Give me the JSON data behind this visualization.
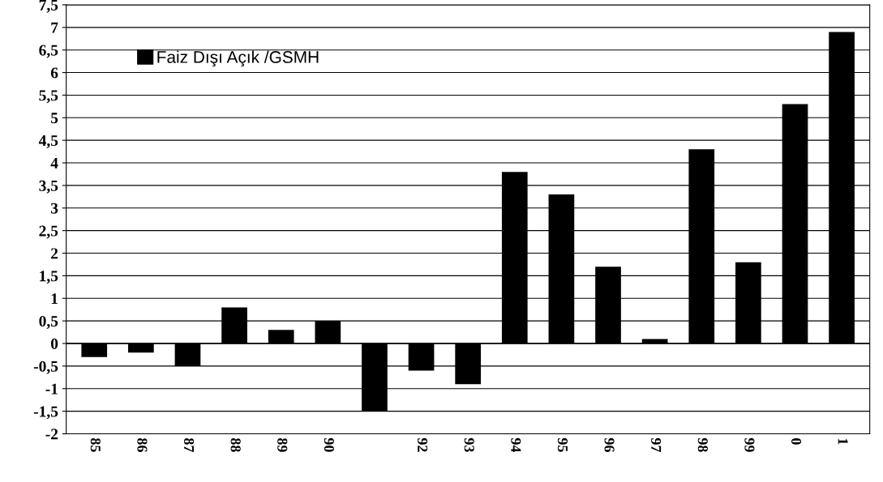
{
  "chart_data": {
    "type": "bar",
    "categories": [
      "85",
      "86",
      "87",
      "88",
      "89",
      "90",
      null,
      "92",
      "93",
      "94",
      "95",
      "96",
      "97",
      "98",
      "99",
      "0",
      "1"
    ],
    "series": [
      {
        "name": "Faiz Dışı Açık /GSMH",
        "color": "#000000",
        "values": [
          -0.3,
          -0.2,
          -0.5,
          0.8,
          0.3,
          0.5,
          -1.5,
          -0.6,
          -0.9,
          3.8,
          3.3,
          1.7,
          0.1,
          4.3,
          1.8,
          5.3,
          6.9
        ]
      }
    ],
    "ylim": [
      -2,
      7.5
    ],
    "yticks": [
      -2,
      {
        "value": -1.5,
        "label": "-1,5"
      },
      -1,
      {
        "value": -0.5,
        "label": "-0,5"
      },
      0,
      {
        "value": 0.5,
        "label": "0,5"
      },
      1,
      {
        "value": 1.5,
        "label": "1,5"
      },
      2,
      {
        "value": 2.5,
        "label": "2,5"
      },
      3,
      {
        "value": 3.5,
        "label": "3,5"
      },
      4,
      {
        "value": 4.5,
        "label": "4,5"
      },
      5,
      {
        "value": 5.5,
        "label": "5,5"
      },
      6,
      {
        "value": 6.5,
        "label": "6,5"
      },
      7,
      {
        "value": 7.5,
        "label": "7,5"
      }
    ],
    "grid": "y",
    "legend": "top left"
  }
}
